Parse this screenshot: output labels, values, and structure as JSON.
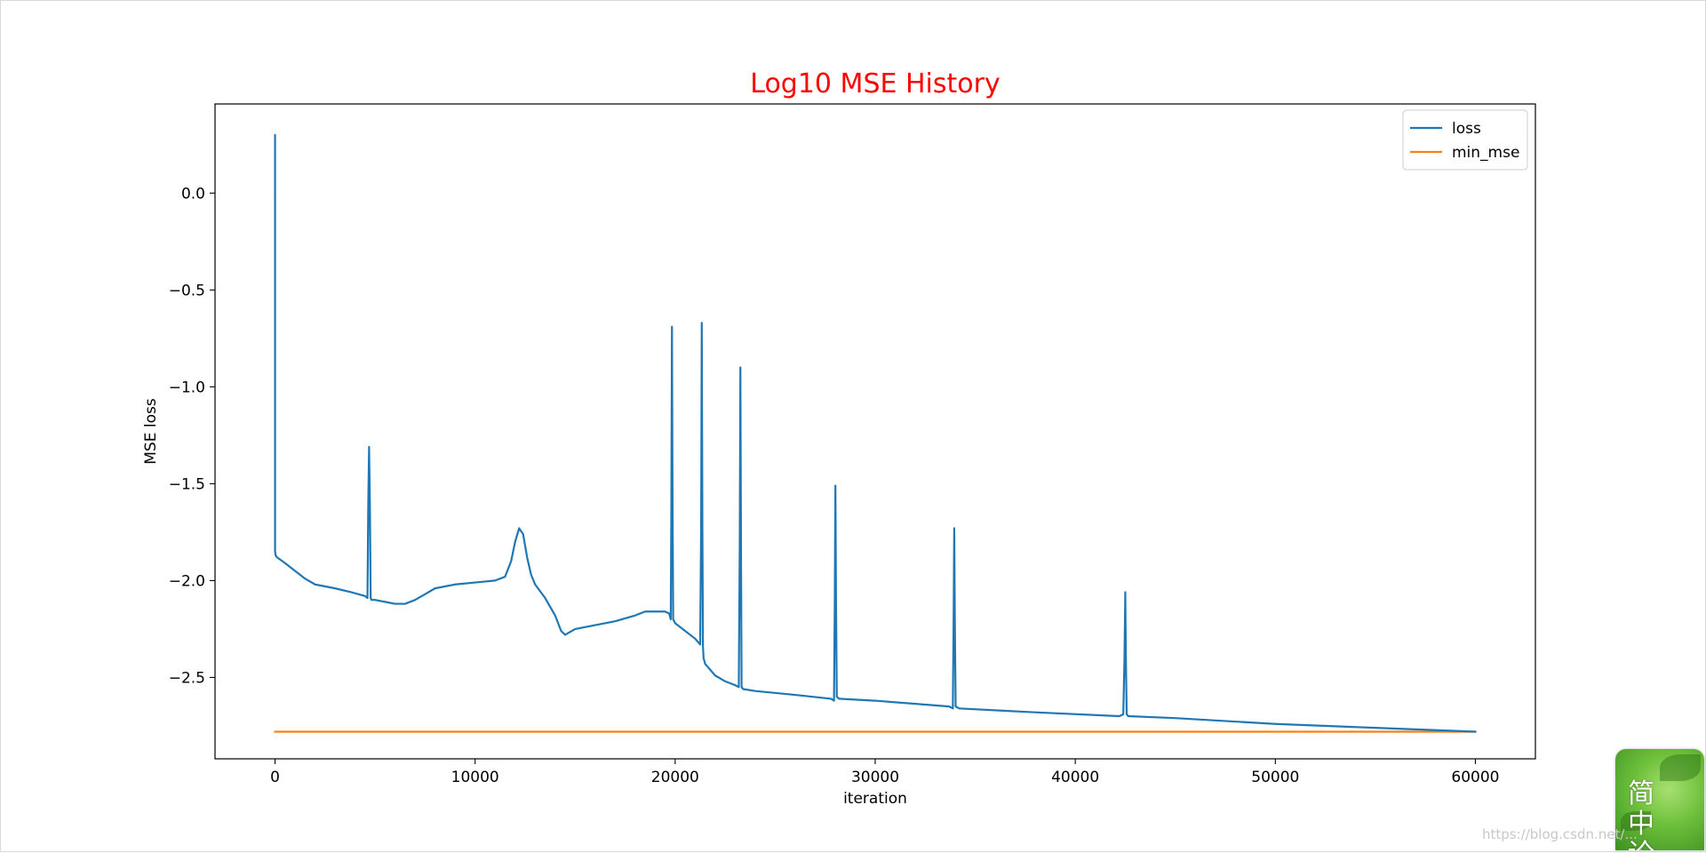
{
  "chart_data": {
    "type": "line",
    "title": "Log10 MSE History",
    "xlabel": "iteration",
    "ylabel": "MSE loss",
    "xlim": [
      -3000,
      63000
    ],
    "ylim": [
      -2.92,
      0.46
    ],
    "xticks": [
      0,
      10000,
      20000,
      30000,
      40000,
      50000,
      60000
    ],
    "xtick_labels": [
      "0",
      "10000",
      "20000",
      "30000",
      "40000",
      "50000",
      "60000"
    ],
    "yticks": [
      0.0,
      -0.5,
      -1.0,
      -1.5,
      -2.0,
      -2.5
    ],
    "ytick_labels": [
      "0.0",
      "−0.5",
      "−1.0",
      "−1.5",
      "−2.0",
      "−2.5"
    ],
    "grid": false,
    "legend_position": "top-right",
    "series": [
      {
        "name": "loss",
        "color": "#1f77b4",
        "x": [
          0,
          0,
          1,
          1,
          30,
          100,
          500,
          1000,
          1500,
          2000,
          3000,
          3800,
          4500,
          4620,
          4660,
          4700,
          4740,
          4780,
          4820,
          5000,
          5500,
          6000,
          6500,
          7000,
          7500,
          8000,
          9000,
          10000,
          11000,
          11500,
          11800,
          12000,
          12200,
          12400,
          12600,
          12800,
          13000,
          13500,
          14000,
          14300,
          14500,
          15000,
          16000,
          17000,
          18000,
          18500,
          19000,
          19500,
          19700,
          19780,
          19810,
          19840,
          19870,
          19900,
          20000,
          20500,
          21000,
          21250,
          21300,
          21330,
          21360,
          21390,
          21420,
          21500,
          22000,
          22500,
          23000,
          23180,
          23230,
          23260,
          23290,
          23320,
          23400,
          24000,
          26000,
          27800,
          27940,
          27980,
          28010,
          28040,
          28080,
          28200,
          30000,
          33700,
          33880,
          33920,
          33950,
          33980,
          34020,
          34200,
          38000,
          42200,
          42400,
          42460,
          42500,
          42530,
          42570,
          42650,
          45000,
          50000,
          55000,
          60000
        ],
        "values": [
          0.0,
          0.3,
          0.02,
          -1.85,
          -1.87,
          -1.88,
          -1.91,
          -1.95,
          -1.99,
          -2.02,
          -2.04,
          -2.06,
          -2.08,
          -2.09,
          -1.6,
          -1.31,
          -1.6,
          -2.09,
          -2.1,
          -2.1,
          -2.11,
          -2.12,
          -2.12,
          -2.1,
          -2.07,
          -2.04,
          -2.02,
          -2.01,
          -2.0,
          -1.98,
          -1.9,
          -1.8,
          -1.73,
          -1.76,
          -1.88,
          -1.97,
          -2.02,
          -2.09,
          -2.18,
          -2.26,
          -2.28,
          -2.25,
          -2.23,
          -2.21,
          -2.18,
          -2.16,
          -2.16,
          -2.16,
          -2.17,
          -2.2,
          -1.6,
          -0.69,
          -1.6,
          -2.2,
          -2.22,
          -2.26,
          -2.3,
          -2.33,
          -1.7,
          -0.67,
          -1.7,
          -2.34,
          -2.4,
          -2.43,
          -2.49,
          -2.52,
          -2.54,
          -2.55,
          -1.8,
          -0.9,
          -1.8,
          -2.55,
          -2.56,
          -2.57,
          -2.59,
          -2.61,
          -2.62,
          -2.1,
          -1.51,
          -2.1,
          -2.6,
          -2.61,
          -2.62,
          -2.65,
          -2.66,
          -2.2,
          -1.73,
          -2.2,
          -2.65,
          -2.66,
          -2.68,
          -2.7,
          -2.69,
          -2.4,
          -2.06,
          -2.4,
          -2.69,
          -2.7,
          -2.71,
          -2.74,
          -2.76,
          -2.78
        ]
      },
      {
        "name": "min_mse",
        "color": "#ff7f0e",
        "x": [
          0,
          60000
        ],
        "values": [
          -2.78,
          -2.78
        ]
      }
    ]
  },
  "overlay": {
    "logo_text": "简中论",
    "watermark_text": "https://blog.csdn.net/..."
  }
}
